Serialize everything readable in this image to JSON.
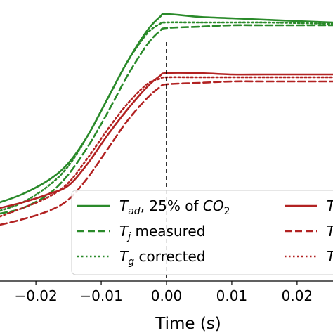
{
  "chart_data": {
    "type": "line",
    "xlabel": "Time (s)",
    "ylabel": "",
    "xlim": [
      -0.0255,
      0.0255
    ],
    "ylim": [
      0,
      1
    ],
    "grid": false,
    "legend_position": "lower-right",
    "xticks": [
      -0.02,
      -0.01,
      0.0,
      0.01,
      0.02
    ],
    "xtick_labels": [
      "−0.02",
      "−0.01",
      "0.00",
      "0.01",
      "0.02"
    ],
    "vline_x": 0.0,
    "colors": {
      "green": "#2a8a2a",
      "red": "#b22222"
    },
    "series": [
      {
        "legend_main": "T",
        "legend_sub": "ad",
        "legend_rest": ", 25% of CO",
        "legend_sub2": "2",
        "color": "#2a8a2a",
        "dash": "solid",
        "x": [
          -0.0255,
          -0.022,
          -0.018,
          -0.015,
          -0.012,
          -0.009,
          -0.006,
          -0.003,
          -0.001,
          0.0,
          0.005,
          0.01,
          0.015,
          0.02,
          0.0255
        ],
        "y": [
          0.28,
          0.31,
          0.36,
          0.42,
          0.52,
          0.65,
          0.78,
          0.89,
          0.94,
          0.95,
          0.94,
          0.935,
          0.93,
          0.925,
          0.92
        ]
      },
      {
        "legend_main": "T",
        "legend_sub": "j",
        "legend_rest": " measured",
        "color": "#2a8a2a",
        "dash": "dashed",
        "x": [
          -0.0255,
          -0.022,
          -0.018,
          -0.015,
          -0.012,
          -0.009,
          -0.006,
          -0.003,
          -0.001,
          0.0,
          0.005,
          0.01,
          0.015,
          0.02,
          0.0255
        ],
        "y": [
          0.24,
          0.26,
          0.31,
          0.38,
          0.48,
          0.6,
          0.73,
          0.84,
          0.89,
          0.9,
          0.905,
          0.91,
          0.91,
          0.91,
          0.91
        ]
      },
      {
        "legend_main": "T",
        "legend_sub": "g",
        "legend_rest": " corrected",
        "color": "#2a8a2a",
        "dash": "dotted",
        "x": [
          -0.0255,
          -0.022,
          -0.018,
          -0.015,
          -0.012,
          -0.009,
          -0.006,
          -0.003,
          -0.001,
          0.0,
          0.005,
          0.01,
          0.015,
          0.02,
          0.0255
        ],
        "y": [
          0.25,
          0.28,
          0.34,
          0.41,
          0.52,
          0.65,
          0.78,
          0.88,
          0.915,
          0.92,
          0.92,
          0.92,
          0.92,
          0.918,
          0.915
        ]
      },
      {
        "legend_main": "T",
        "legend_sub": "",
        "legend_rest": "",
        "color": "#b22222",
        "dash": "solid",
        "x": [
          -0.0255,
          -0.022,
          -0.018,
          -0.015,
          -0.012,
          -0.009,
          -0.006,
          -0.003,
          -0.001,
          0.0,
          0.005,
          0.01,
          0.015,
          0.02,
          0.0255
        ],
        "y": [
          0.26,
          0.28,
          0.31,
          0.34,
          0.42,
          0.52,
          0.61,
          0.69,
          0.73,
          0.74,
          0.74,
          0.735,
          0.735,
          0.735,
          0.735
        ]
      },
      {
        "legend_main": "T",
        "legend_sub": "",
        "legend_rest": "",
        "color": "#b22222",
        "dash": "dashed",
        "x": [
          -0.0255,
          -0.022,
          -0.018,
          -0.015,
          -0.012,
          -0.009,
          -0.006,
          -0.003,
          -0.001,
          0.0,
          0.005,
          0.01,
          0.015,
          0.02,
          0.0255
        ],
        "y": [
          0.2,
          0.22,
          0.25,
          0.29,
          0.37,
          0.47,
          0.57,
          0.65,
          0.69,
          0.7,
          0.705,
          0.71,
          0.71,
          0.71,
          0.71
        ]
      },
      {
        "legend_main": "T",
        "legend_sub": "",
        "legend_rest": "",
        "color": "#b22222",
        "dash": "dotted",
        "x": [
          -0.0255,
          -0.022,
          -0.018,
          -0.015,
          -0.012,
          -0.009,
          -0.006,
          -0.003,
          -0.001,
          0.0,
          0.005,
          0.01,
          0.015,
          0.02,
          0.0255
        ],
        "y": [
          0.23,
          0.26,
          0.3,
          0.35,
          0.44,
          0.54,
          0.63,
          0.7,
          0.72,
          0.725,
          0.725,
          0.725,
          0.725,
          0.725,
          0.725
        ]
      }
    ]
  }
}
